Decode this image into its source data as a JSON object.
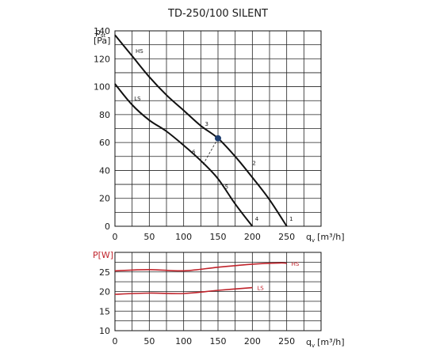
{
  "chart_data": [
    {
      "type": "line",
      "title": "TD-250/100 SILENT",
      "ylabel_main": "p",
      "ylabel_sub": "st",
      "ylabel_unit": "[Pa]",
      "xlabel_main": "q",
      "xlabel_sub": "v",
      "xlabel_unit": "[m³/h]",
      "xlim": [
        0,
        250
      ],
      "ylim": [
        0,
        140
      ],
      "x_ticks": [
        0,
        50,
        100,
        150,
        200,
        250
      ],
      "y_ticks": [
        0,
        20,
        40,
        60,
        80,
        100,
        120,
        140
      ],
      "grid": true,
      "series": [
        {
          "name": "HS",
          "color": "#111111",
          "points": [
            [
              0,
              137
            ],
            [
              25,
              122
            ],
            [
              50,
              107
            ],
            [
              75,
              94
            ],
            [
              100,
              83
            ],
            [
              125,
              72
            ],
            [
              150,
              63
            ],
            [
              175,
              50
            ],
            [
              200,
              35
            ],
            [
              225,
              19
            ],
            [
              250,
              0
            ]
          ]
        },
        {
          "name": "LS",
          "color": "#111111",
          "points": [
            [
              0,
              102
            ],
            [
              25,
              87
            ],
            [
              50,
              76
            ],
            [
              75,
              68
            ],
            [
              100,
              58
            ],
            [
              125,
              47
            ],
            [
              150,
              34
            ],
            [
              175,
              16
            ],
            [
              200,
              0
            ]
          ]
        }
      ],
      "annotations": [
        {
          "text": "HS",
          "x": 30,
          "y": 124
        },
        {
          "text": "LS",
          "x": 28,
          "y": 90
        },
        {
          "text": "1",
          "x": 254,
          "y": 4
        },
        {
          "text": "2",
          "x": 200,
          "y": 44
        },
        {
          "text": "3",
          "x": 131,
          "y": 72
        },
        {
          "text": "4",
          "x": 204,
          "y": 4
        },
        {
          "text": "5",
          "x": 160,
          "y": 27
        },
        {
          "text": "6",
          "x": 112,
          "y": 52
        }
      ],
      "marker": {
        "x": 150,
        "y": 63,
        "color": "#1f3f70"
      },
      "dashed_link": {
        "from": [
          150,
          63
        ],
        "to": [
          128,
          44
        ]
      }
    },
    {
      "type": "line",
      "ylabel": "P[W]",
      "xlabel_main": "q",
      "xlabel_sub": "v",
      "xlabel_unit": "[m³/h]",
      "xlim": [
        0,
        250
      ],
      "ylim": [
        10,
        30
      ],
      "x_ticks": [
        0,
        50,
        100,
        150,
        200,
        250
      ],
      "y_ticks": [
        10,
        15,
        20,
        25
      ],
      "grid": true,
      "series": [
        {
          "name": "HS",
          "color": "#c0232b",
          "points": [
            [
              0,
              25.3
            ],
            [
              50,
              25.6
            ],
            [
              100,
              25.3
            ],
            [
              150,
              26.2
            ],
            [
              200,
              27.0
            ],
            [
              240,
              27.3
            ],
            [
              250,
              27.2
            ]
          ]
        },
        {
          "name": "LS",
          "color": "#c0232b",
          "points": [
            [
              0,
              19.3
            ],
            [
              50,
              19.6
            ],
            [
              100,
              19.5
            ],
            [
              150,
              20.3
            ],
            [
              200,
              21.0
            ]
          ]
        }
      ]
    }
  ]
}
